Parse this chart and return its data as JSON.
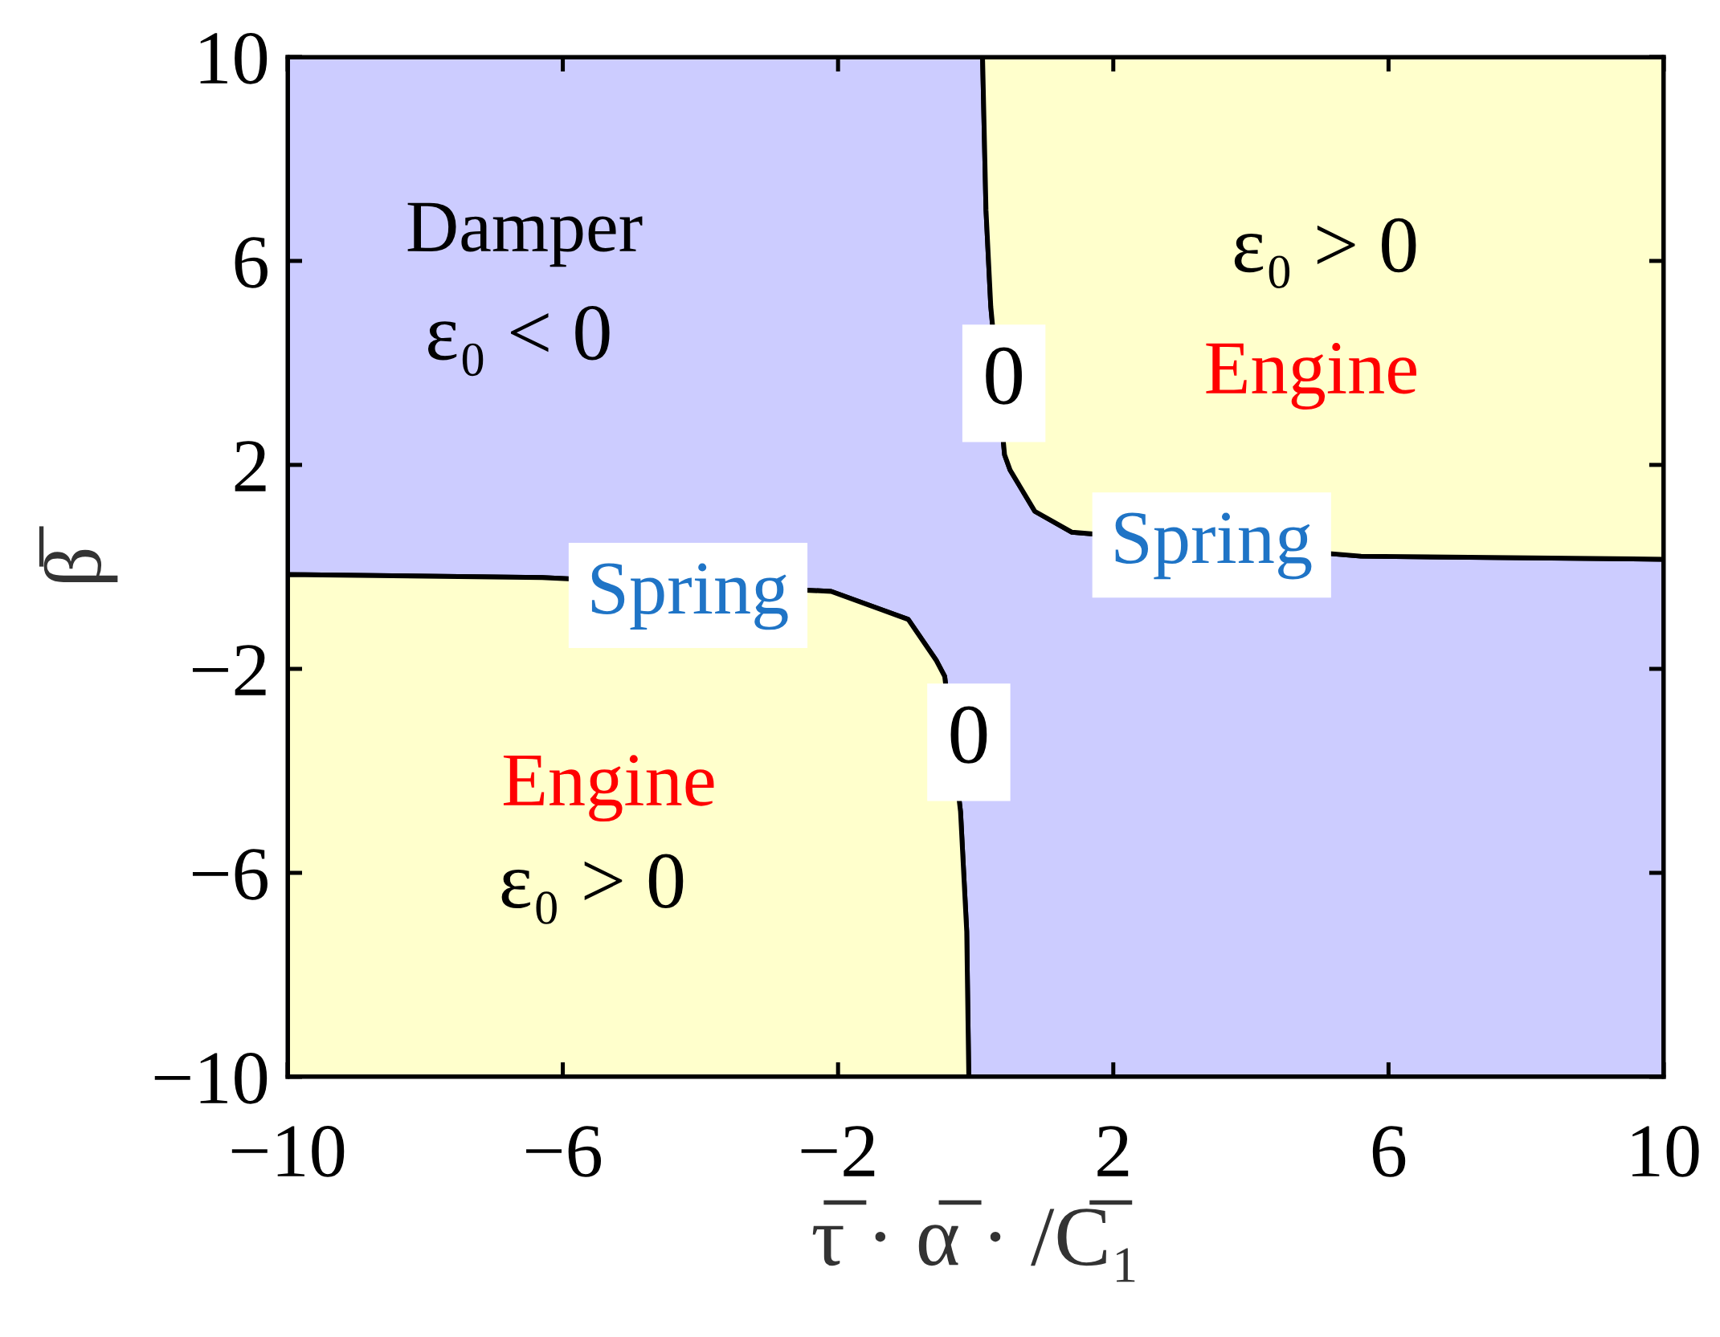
{
  "chart_data": {
    "type": "area",
    "xlabel": "τ̅ · α̅ · /C̅₁",
    "ylabel": "β̅",
    "xlim": [
      -10,
      10
    ],
    "ylim": [
      -10,
      10
    ],
    "xticks": [
      {
        "value": -10,
        "label": "−10"
      },
      {
        "value": -6,
        "label": "−6"
      },
      {
        "value": -2,
        "label": "−2"
      },
      2,
      6,
      10
    ],
    "yticks": [
      {
        "value": -10,
        "label": "−10"
      },
      {
        "value": -6,
        "label": "−6"
      },
      {
        "value": -2,
        "label": "−2"
      },
      2,
      6,
      10
    ],
    "series": [
      {
        "color": "#ccccff",
        "x": [
          -10,
          0.1,
          0.15,
          0.22,
          0.42,
          0.5,
          0.86,
          1.4,
          5.6,
          10,
          10,
          -0.1,
          -0.13,
          -0.22,
          -0.45,
          -0.57,
          -0.98,
          -2.1,
          -6.3,
          -10
        ],
        "values": [
          10,
          10,
          7,
          5.1,
          2.2,
          1.9,
          1.09,
          0.68,
          0.21,
          0.15,
          -10,
          -10,
          -7.15,
          -4.8,
          -2.15,
          -1.84,
          -1.03,
          -0.48,
          -0.21,
          -0.15
        ]
      },
      {
        "color": "#ffffcc",
        "x": [
          0.1,
          0.15,
          0.22,
          0.42,
          0.5,
          0.86,
          1.4,
          5.6,
          10,
          10
        ],
        "values": [
          10,
          7,
          5.1,
          2.2,
          1.9,
          1.09,
          0.68,
          0.21,
          0.15,
          10
        ]
      },
      {
        "color": "#ffffcc",
        "x": [
          -10,
          -10,
          -6.3,
          -2.1,
          -0.98,
          -0.57,
          -0.45,
          -0.22,
          -0.13,
          -0.1
        ],
        "values": [
          -10,
          -0.15,
          -0.21,
          -0.48,
          -1.03,
          -1.84,
          -2.15,
          -4.8,
          -7.15,
          -10
        ]
      }
    ],
    "annotations": [
      "Damper",
      "ε₀ < 0",
      "ε₀ > 0",
      "0",
      "Engine",
      "Spring",
      "Spring",
      "0",
      "Engine",
      "ε₀ > 0"
    ]
  }
}
